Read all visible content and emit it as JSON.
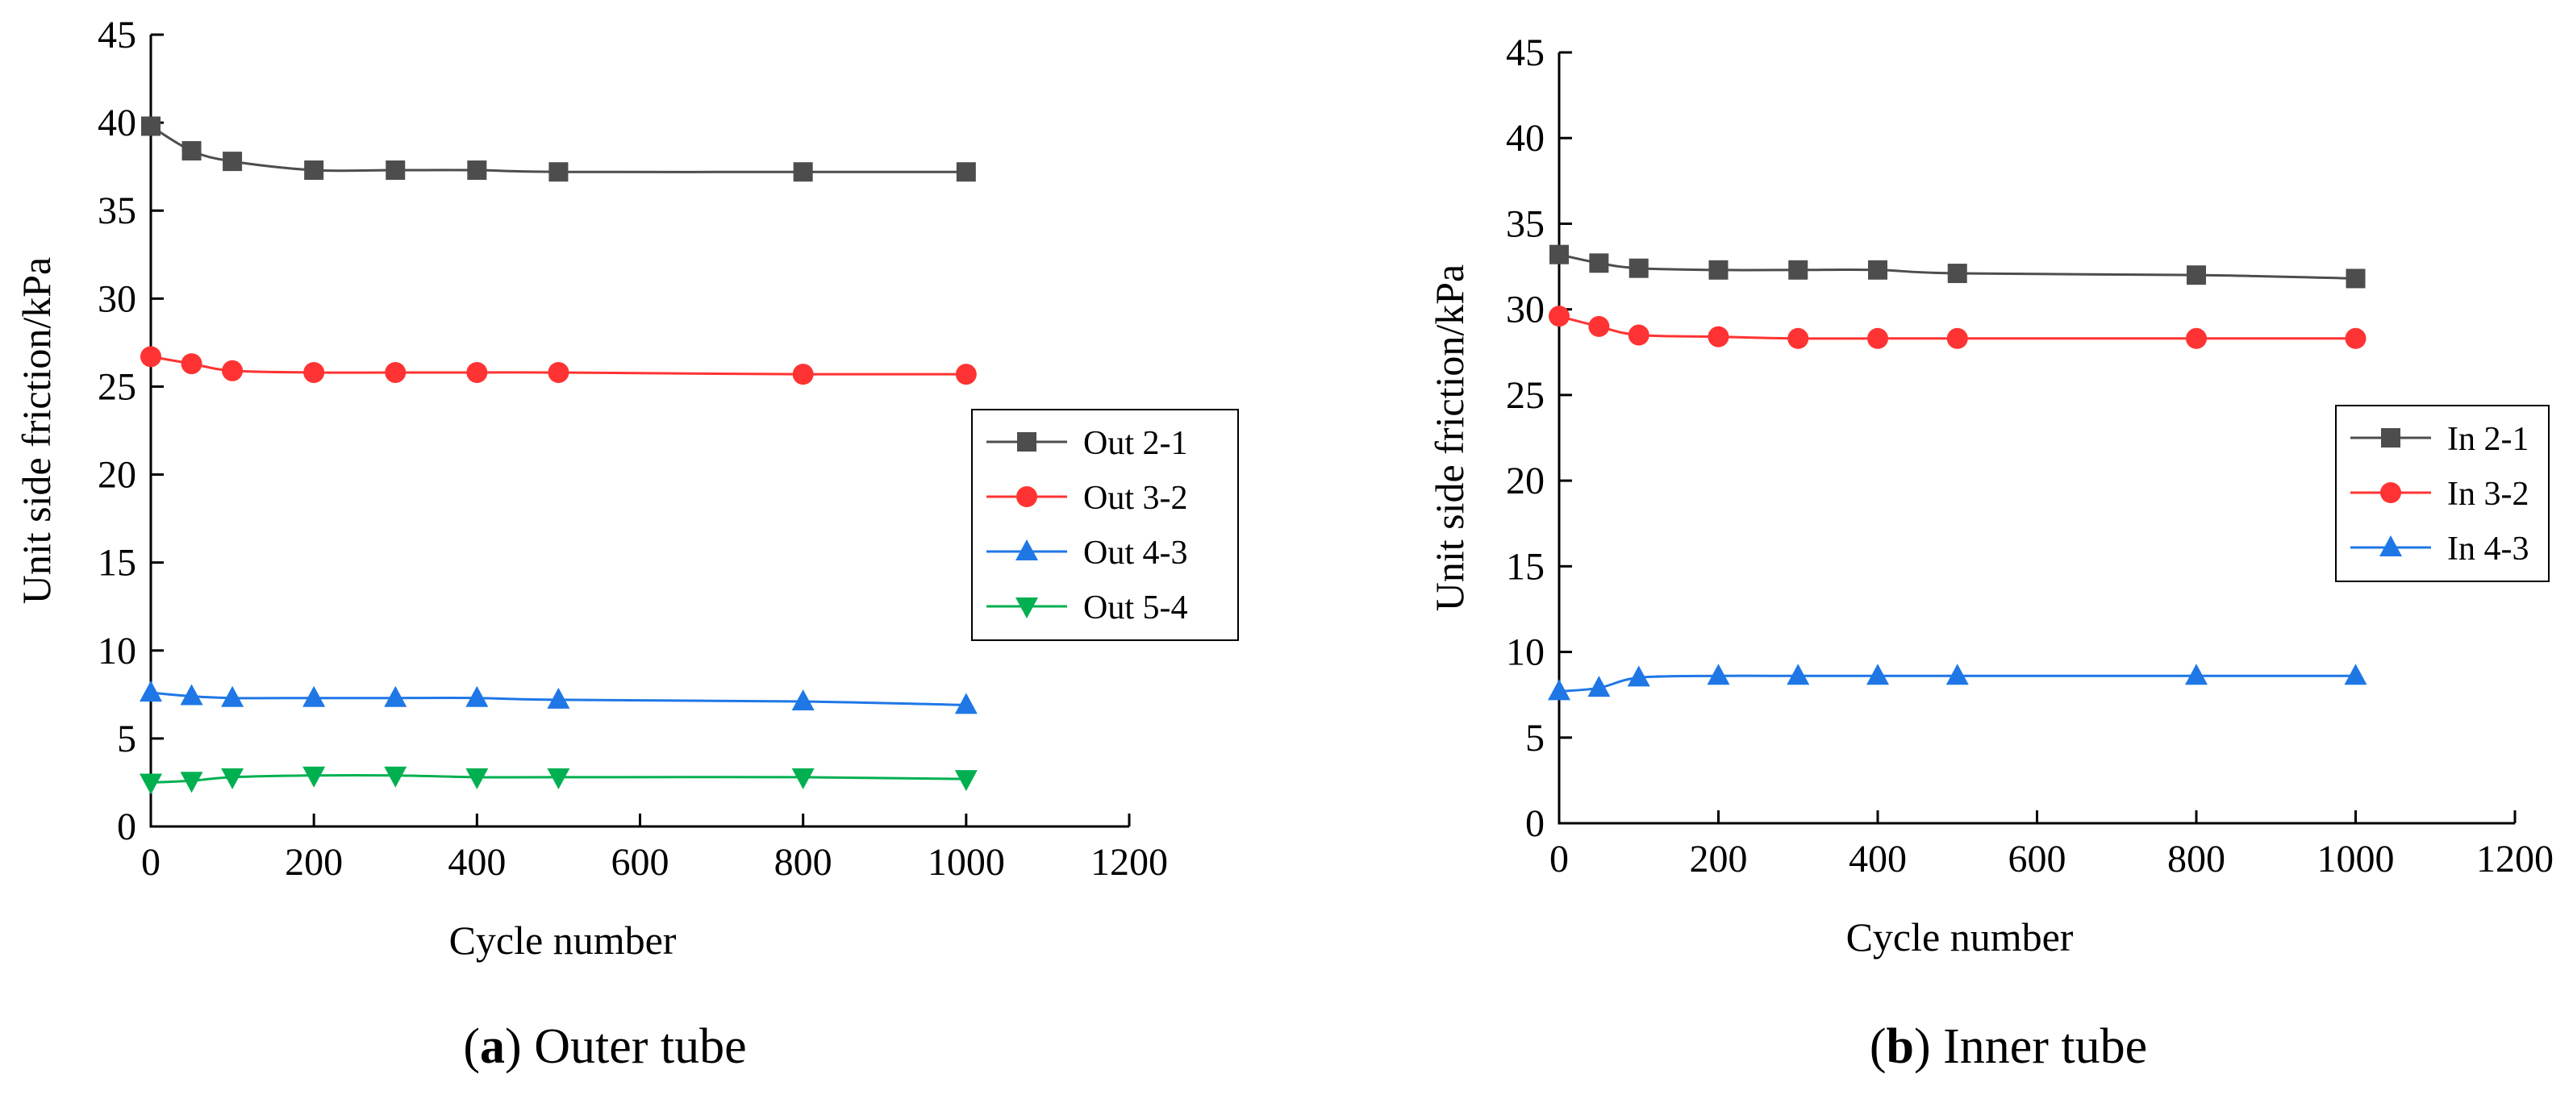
{
  "figure": {
    "captions": [
      {
        "letter": "a",
        "text": "Outer tube"
      },
      {
        "letter": "b",
        "text": "Inner tube"
      }
    ]
  },
  "chart_data": [
    {
      "type": "line",
      "xlabel": "Cycle number",
      "ylabel": "Unit side friction/kPa",
      "xlim": [
        0,
        1200
      ],
      "ylim": [
        0,
        45
      ],
      "xticks": [
        0,
        200,
        400,
        600,
        800,
        1000,
        1200
      ],
      "yticks": [
        0,
        5,
        10,
        15,
        20,
        25,
        30,
        35,
        40,
        45
      ],
      "grid": false,
      "legend_position": "right",
      "x": [
        0,
        50,
        100,
        200,
        300,
        400,
        500,
        800,
        1000
      ],
      "series": [
        {
          "name": "Out 2-1",
          "color": "#4d4d4d",
          "marker": "square",
          "values": [
            39.8,
            38.4,
            37.8,
            37.3,
            37.3,
            37.3,
            37.2,
            37.2,
            37.2
          ]
        },
        {
          "name": "Out 3-2",
          "color": "#ff3333",
          "marker": "circle",
          "values": [
            26.7,
            26.3,
            25.9,
            25.8,
            25.8,
            25.8,
            25.8,
            25.7,
            25.7
          ]
        },
        {
          "name": "Out 4-3",
          "color": "#1f77e6",
          "marker": "triangle-up",
          "values": [
            7.6,
            7.4,
            7.3,
            7.3,
            7.3,
            7.3,
            7.2,
            7.1,
            6.9
          ]
        },
        {
          "name": "Out 5-4",
          "color": "#00b050",
          "marker": "triangle-down",
          "values": [
            2.5,
            2.6,
            2.8,
            2.9,
            2.9,
            2.8,
            2.8,
            2.8,
            2.7
          ]
        }
      ]
    },
    {
      "type": "line",
      "xlabel": "Cycle number",
      "ylabel": "Unit side friction/kPa",
      "xlim": [
        0,
        1200
      ],
      "ylim": [
        0,
        45
      ],
      "xticks": [
        0,
        200,
        400,
        600,
        800,
        1000,
        1200
      ],
      "yticks": [
        0,
        5,
        10,
        15,
        20,
        25,
        30,
        35,
        40,
        45
      ],
      "grid": false,
      "legend_position": "right",
      "x": [
        0,
        50,
        100,
        200,
        300,
        400,
        500,
        800,
        1000
      ],
      "series": [
        {
          "name": "In 2-1",
          "color": "#4d4d4d",
          "marker": "square",
          "values": [
            33.2,
            32.7,
            32.4,
            32.3,
            32.3,
            32.3,
            32.1,
            32.0,
            31.8
          ]
        },
        {
          "name": "In 3-2",
          "color": "#ff3333",
          "marker": "circle",
          "values": [
            29.6,
            29.0,
            28.5,
            28.4,
            28.3,
            28.3,
            28.3,
            28.3,
            28.3
          ]
        },
        {
          "name": "In 4-3",
          "color": "#1f77e6",
          "marker": "triangle-up",
          "values": [
            7.7,
            7.9,
            8.5,
            8.6,
            8.6,
            8.6,
            8.6,
            8.6,
            8.6
          ]
        }
      ]
    }
  ]
}
